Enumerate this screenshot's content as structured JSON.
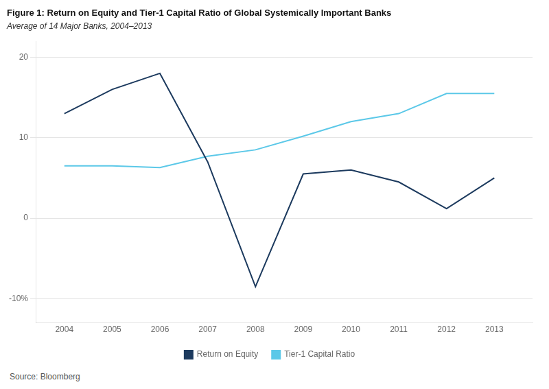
{
  "chart_data": {
    "type": "line",
    "title": "Figure 1: Return on Equity and Tier-1 Capital Ratio of Global Systemically Important Banks",
    "subtitle": "Average of 14 Major Banks, 2004–2013",
    "source": "Source: Bloomberg",
    "x": [
      2004,
      2005,
      2006,
      2007,
      2008,
      2009,
      2010,
      2011,
      2012,
      2013
    ],
    "series": [
      {
        "name": "Return on Equity",
        "color": "#1c3a5e",
        "values": [
          13.0,
          16.0,
          18.0,
          7.0,
          -8.5,
          5.5,
          6.0,
          4.5,
          1.2,
          5.0
        ]
      },
      {
        "name": "Tier-1 Capital Ratio",
        "color": "#5bc8e8",
        "values": [
          6.5,
          6.5,
          6.3,
          7.7,
          8.5,
          10.2,
          12.0,
          13.0,
          15.5,
          15.5
        ]
      }
    ],
    "xlim": [
      2003.4,
      2013.8
    ],
    "xticks": [
      2004,
      2005,
      2006,
      2007,
      2008,
      2009,
      2010,
      2011,
      2012,
      2013
    ],
    "ylim": [
      -13,
      22
    ],
    "yticks": [
      {
        "value": -10,
        "label": "-10%"
      },
      0,
      10,
      20
    ],
    "grid": "y",
    "legend": "bottom"
  }
}
